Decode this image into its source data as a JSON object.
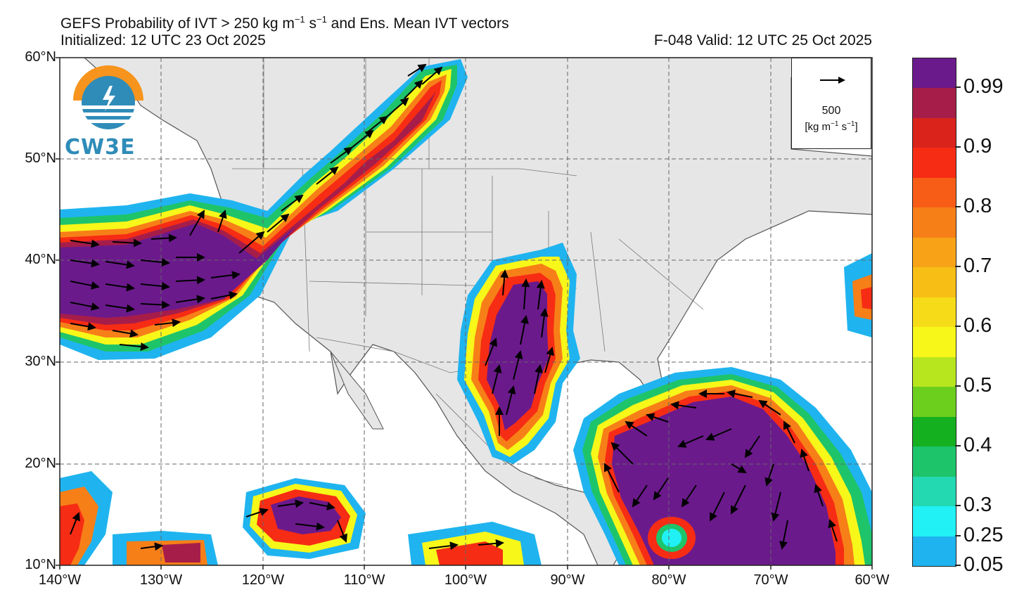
{
  "header": {
    "title_main": "GEFS Probability of IVT > 250 kg m",
    "title_exp1": "−1",
    "title_mid": " s",
    "title_exp2": "−1",
    "title_tail": " and Ens. Mean IVT vectors",
    "initialized": "Initialized: 12 UTC 23 Oct 2025",
    "valid": "F-048  Valid: 12 UTC 25 Oct 2025"
  },
  "logo": {
    "text": "CW3E",
    "icon": "lightning-globe-icon",
    "colors": {
      "orange": "#f7941d",
      "blue": "#2f8cb8"
    }
  },
  "reference_vector": {
    "value": "500",
    "unit_main": "[kg m",
    "unit_exp1": "−1",
    "unit_mid": " s",
    "unit_exp2": "−1",
    "unit_tail": "]",
    "icon": "arrow-right-icon"
  },
  "colorbar": {
    "colors": [
      "#1fb4ef",
      "#21f1f5",
      "#23d9b2",
      "#1ec46a",
      "#14b020",
      "#6ccf1e",
      "#b8e61e",
      "#f7f719",
      "#f6dc18",
      "#f7be15",
      "#f8a317",
      "#f77f18",
      "#f75d16",
      "#f72c14",
      "#d9231b",
      "#a61d4a",
      "#6b1a8c"
    ],
    "tick_labels": [
      "0.05",
      "0.25",
      "0.3",
      "0.4",
      "0.5",
      "0.6",
      "0.7",
      "0.8",
      "0.9",
      "0.99"
    ]
  },
  "map": {
    "region": "North Pacific / North America / Caribbean",
    "land_color": "#e6e6e6",
    "ocean_color": "#ffffff",
    "lat_labels": [
      "60°N",
      "50°N",
      "40°N",
      "30°N",
      "20°N",
      "10°N"
    ],
    "lon_labels": [
      "140°W",
      "130°W",
      "120°W",
      "110°W",
      "100°W",
      "90°W",
      "80°W",
      "70°W",
      "60°W"
    ]
  }
}
